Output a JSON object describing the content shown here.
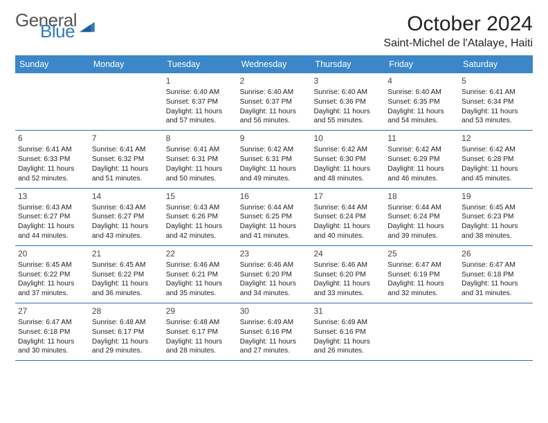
{
  "brand": {
    "general": "General",
    "blue": "Blue"
  },
  "header": {
    "title": "October 2024",
    "location": "Saint-Michel de l'Atalaye, Haiti"
  },
  "colors": {
    "header_bar": "#3b87c8",
    "row_divider": "#2f6fa8",
    "logo_blue": "#2f7bbf",
    "logo_gray": "#555555",
    "text": "#222222",
    "background": "#ffffff"
  },
  "days_of_week": [
    "Sunday",
    "Monday",
    "Tuesday",
    "Wednesday",
    "Thursday",
    "Friday",
    "Saturday"
  ],
  "weeks": [
    [
      null,
      null,
      {
        "n": "1",
        "sr": "Sunrise: 6:40 AM",
        "ss": "Sunset: 6:37 PM",
        "d1": "Daylight: 11 hours",
        "d2": "and 57 minutes."
      },
      {
        "n": "2",
        "sr": "Sunrise: 6:40 AM",
        "ss": "Sunset: 6:37 PM",
        "d1": "Daylight: 11 hours",
        "d2": "and 56 minutes."
      },
      {
        "n": "3",
        "sr": "Sunrise: 6:40 AM",
        "ss": "Sunset: 6:36 PM",
        "d1": "Daylight: 11 hours",
        "d2": "and 55 minutes."
      },
      {
        "n": "4",
        "sr": "Sunrise: 6:40 AM",
        "ss": "Sunset: 6:35 PM",
        "d1": "Daylight: 11 hours",
        "d2": "and 54 minutes."
      },
      {
        "n": "5",
        "sr": "Sunrise: 6:41 AM",
        "ss": "Sunset: 6:34 PM",
        "d1": "Daylight: 11 hours",
        "d2": "and 53 minutes."
      }
    ],
    [
      {
        "n": "6",
        "sr": "Sunrise: 6:41 AM",
        "ss": "Sunset: 6:33 PM",
        "d1": "Daylight: 11 hours",
        "d2": "and 52 minutes."
      },
      {
        "n": "7",
        "sr": "Sunrise: 6:41 AM",
        "ss": "Sunset: 6:32 PM",
        "d1": "Daylight: 11 hours",
        "d2": "and 51 minutes."
      },
      {
        "n": "8",
        "sr": "Sunrise: 6:41 AM",
        "ss": "Sunset: 6:31 PM",
        "d1": "Daylight: 11 hours",
        "d2": "and 50 minutes."
      },
      {
        "n": "9",
        "sr": "Sunrise: 6:42 AM",
        "ss": "Sunset: 6:31 PM",
        "d1": "Daylight: 11 hours",
        "d2": "and 49 minutes."
      },
      {
        "n": "10",
        "sr": "Sunrise: 6:42 AM",
        "ss": "Sunset: 6:30 PM",
        "d1": "Daylight: 11 hours",
        "d2": "and 48 minutes."
      },
      {
        "n": "11",
        "sr": "Sunrise: 6:42 AM",
        "ss": "Sunset: 6:29 PM",
        "d1": "Daylight: 11 hours",
        "d2": "and 46 minutes."
      },
      {
        "n": "12",
        "sr": "Sunrise: 6:42 AM",
        "ss": "Sunset: 6:28 PM",
        "d1": "Daylight: 11 hours",
        "d2": "and 45 minutes."
      }
    ],
    [
      {
        "n": "13",
        "sr": "Sunrise: 6:43 AM",
        "ss": "Sunset: 6:27 PM",
        "d1": "Daylight: 11 hours",
        "d2": "and 44 minutes."
      },
      {
        "n": "14",
        "sr": "Sunrise: 6:43 AM",
        "ss": "Sunset: 6:27 PM",
        "d1": "Daylight: 11 hours",
        "d2": "and 43 minutes."
      },
      {
        "n": "15",
        "sr": "Sunrise: 6:43 AM",
        "ss": "Sunset: 6:26 PM",
        "d1": "Daylight: 11 hours",
        "d2": "and 42 minutes."
      },
      {
        "n": "16",
        "sr": "Sunrise: 6:44 AM",
        "ss": "Sunset: 6:25 PM",
        "d1": "Daylight: 11 hours",
        "d2": "and 41 minutes."
      },
      {
        "n": "17",
        "sr": "Sunrise: 6:44 AM",
        "ss": "Sunset: 6:24 PM",
        "d1": "Daylight: 11 hours",
        "d2": "and 40 minutes."
      },
      {
        "n": "18",
        "sr": "Sunrise: 6:44 AM",
        "ss": "Sunset: 6:24 PM",
        "d1": "Daylight: 11 hours",
        "d2": "and 39 minutes."
      },
      {
        "n": "19",
        "sr": "Sunrise: 6:45 AM",
        "ss": "Sunset: 6:23 PM",
        "d1": "Daylight: 11 hours",
        "d2": "and 38 minutes."
      }
    ],
    [
      {
        "n": "20",
        "sr": "Sunrise: 6:45 AM",
        "ss": "Sunset: 6:22 PM",
        "d1": "Daylight: 11 hours",
        "d2": "and 37 minutes."
      },
      {
        "n": "21",
        "sr": "Sunrise: 6:45 AM",
        "ss": "Sunset: 6:22 PM",
        "d1": "Daylight: 11 hours",
        "d2": "and 36 minutes."
      },
      {
        "n": "22",
        "sr": "Sunrise: 6:46 AM",
        "ss": "Sunset: 6:21 PM",
        "d1": "Daylight: 11 hours",
        "d2": "and 35 minutes."
      },
      {
        "n": "23",
        "sr": "Sunrise: 6:46 AM",
        "ss": "Sunset: 6:20 PM",
        "d1": "Daylight: 11 hours",
        "d2": "and 34 minutes."
      },
      {
        "n": "24",
        "sr": "Sunrise: 6:46 AM",
        "ss": "Sunset: 6:20 PM",
        "d1": "Daylight: 11 hours",
        "d2": "and 33 minutes."
      },
      {
        "n": "25",
        "sr": "Sunrise: 6:47 AM",
        "ss": "Sunset: 6:19 PM",
        "d1": "Daylight: 11 hours",
        "d2": "and 32 minutes."
      },
      {
        "n": "26",
        "sr": "Sunrise: 6:47 AM",
        "ss": "Sunset: 6:18 PM",
        "d1": "Daylight: 11 hours",
        "d2": "and 31 minutes."
      }
    ],
    [
      {
        "n": "27",
        "sr": "Sunrise: 6:47 AM",
        "ss": "Sunset: 6:18 PM",
        "d1": "Daylight: 11 hours",
        "d2": "and 30 minutes."
      },
      {
        "n": "28",
        "sr": "Sunrise: 6:48 AM",
        "ss": "Sunset: 6:17 PM",
        "d1": "Daylight: 11 hours",
        "d2": "and 29 minutes."
      },
      {
        "n": "29",
        "sr": "Sunrise: 6:48 AM",
        "ss": "Sunset: 6:17 PM",
        "d1": "Daylight: 11 hours",
        "d2": "and 28 minutes."
      },
      {
        "n": "30",
        "sr": "Sunrise: 6:49 AM",
        "ss": "Sunset: 6:16 PM",
        "d1": "Daylight: 11 hours",
        "d2": "and 27 minutes."
      },
      {
        "n": "31",
        "sr": "Sunrise: 6:49 AM",
        "ss": "Sunset: 6:16 PM",
        "d1": "Daylight: 11 hours",
        "d2": "and 26 minutes."
      },
      null,
      null
    ]
  ]
}
